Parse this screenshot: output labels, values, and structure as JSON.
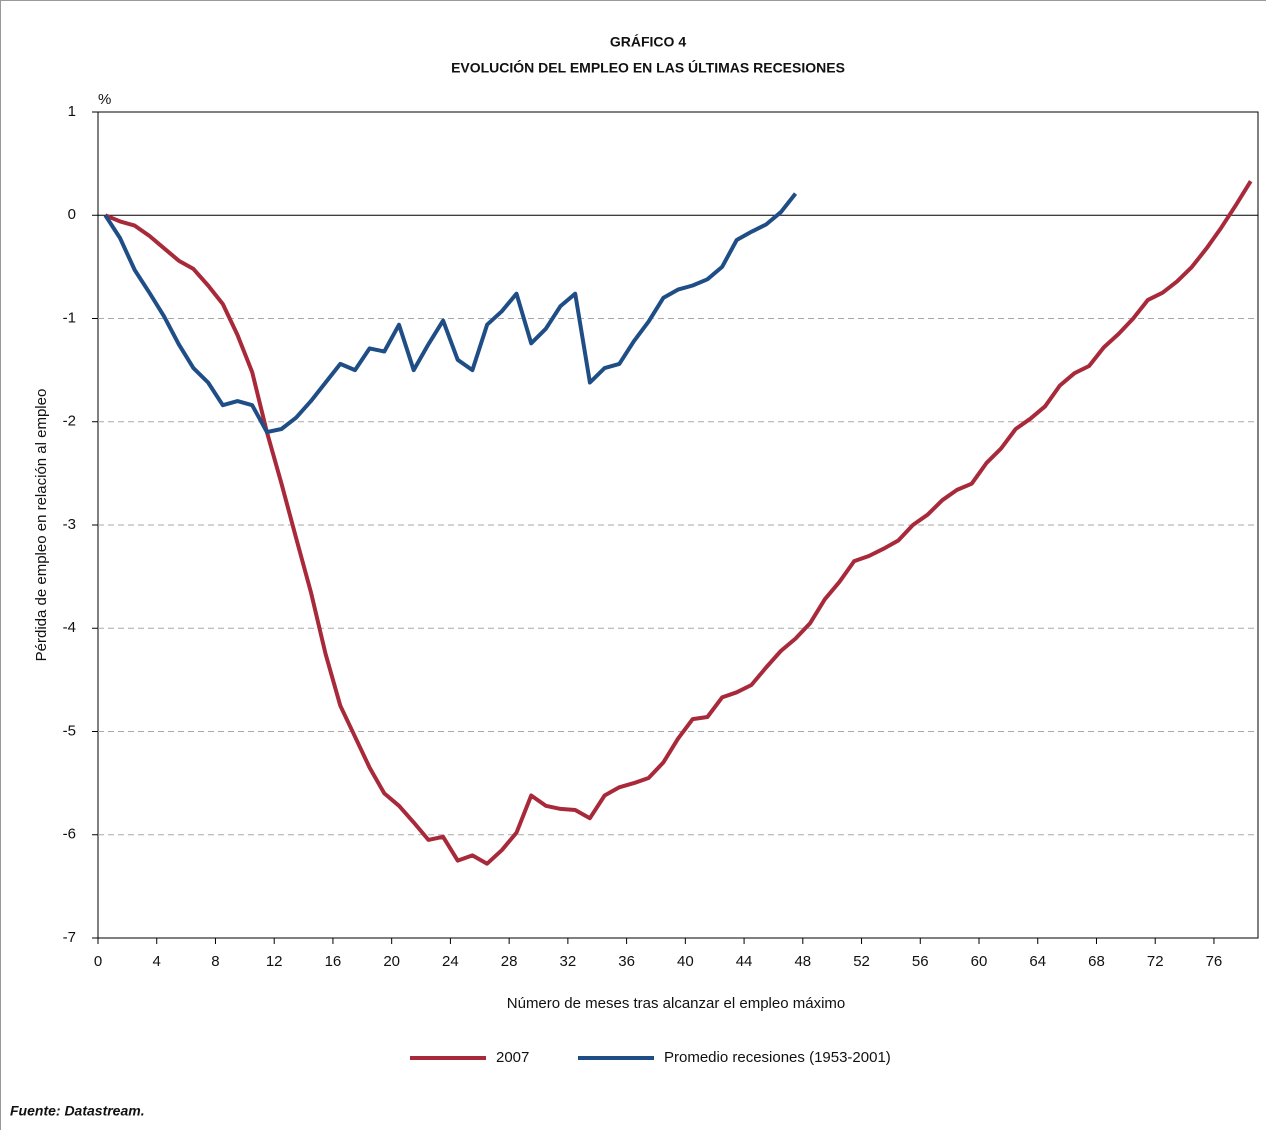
{
  "chart_data": {
    "type": "line",
    "title": "GRÁFICO 4",
    "subtitle": "EVOLUCIÓN DEL EMPLEO EN LAS ÚLTIMAS RECESIONES",
    "y_unit": "%",
    "ylabel": "Pérdida de empleo en relación al empleo",
    "xlabel": "Número de meses tras alcanzar el empleo máximo",
    "source": "Fuente: Datastream.",
    "xlim": [
      0,
      79
    ],
    "ylim": [
      -7,
      1
    ],
    "xticks": [
      0,
      4,
      8,
      12,
      16,
      20,
      24,
      28,
      32,
      36,
      40,
      44,
      48,
      52,
      56,
      60,
      64,
      68,
      72,
      76
    ],
    "yticks": [
      1,
      0,
      -1,
      -2,
      -3,
      -4,
      -5,
      -6,
      -7
    ],
    "grid": true,
    "legend": "bottom",
    "series": [
      {
        "name": "2007",
        "color": "#a82a3a",
        "x": [
          0.5,
          1.5,
          2.5,
          3.5,
          4.5,
          5.5,
          6.5,
          7.5,
          8.5,
          9.5,
          10.5,
          11.5,
          12.5,
          13.5,
          14.5,
          15.5,
          16.5,
          17.5,
          18.5,
          19.5,
          20.5,
          21.5,
          22.5,
          23.5,
          24.5,
          25.5,
          26.5,
          27.5,
          28.5,
          29.5,
          30.5,
          31.5,
          32.5,
          33.5,
          34.5,
          35.5,
          36.5,
          37.5,
          38.5,
          39.5,
          40.5,
          41.5,
          42.5,
          43.5,
          44.5,
          45.5,
          46.5,
          47.5,
          48.5,
          49.5,
          50.5,
          51.5,
          52.5,
          53.5,
          54.5,
          55.5,
          56.5,
          57.5,
          58.5,
          59.5,
          60.5,
          61.5,
          62.5,
          63.5,
          64.5,
          65.5,
          66.5,
          67.5,
          68.5,
          69.5,
          70.5,
          71.5,
          72.5,
          73.5,
          74.5,
          75.5,
          76.5,
          77.5,
          78.5
        ],
        "values": [
          0,
          -0.06,
          -0.1,
          -0.2,
          -0.32,
          -0.44,
          -0.52,
          -0.68,
          -0.86,
          -1.16,
          -1.52,
          -2.1,
          -2.6,
          -3.13,
          -3.65,
          -4.25,
          -4.75,
          -5.05,
          -5.35,
          -5.6,
          -5.72,
          -5.88,
          -6.05,
          -6.02,
          -6.25,
          -6.2,
          -6.28,
          -6.15,
          -5.98,
          -5.62,
          -5.72,
          -5.75,
          -5.76,
          -5.84,
          -5.62,
          -5.54,
          -5.5,
          -5.45,
          -5.3,
          -5.07,
          -4.88,
          -4.86,
          -4.67,
          -4.62,
          -4.55,
          -4.38,
          -4.22,
          -4.1,
          -3.95,
          -3.72,
          -3.55,
          -3.35,
          -3.3,
          -3.23,
          -3.15,
          -3.0,
          -2.9,
          -2.76,
          -2.66,
          -2.6,
          -2.4,
          -2.26,
          -2.07,
          -1.97,
          -1.85,
          -1.65,
          -1.53,
          -1.46,
          -1.28,
          -1.15,
          -1.0,
          -0.82,
          -0.75,
          -0.64,
          -0.5,
          -0.32,
          -0.12,
          0.1,
          0.33
        ]
      },
      {
        "name": "Promedio recesiones (1953-2001)",
        "color": "#1f4e87",
        "x": [
          0.5,
          1.5,
          2.5,
          3.5,
          4.5,
          5.5,
          6.5,
          7.5,
          8.5,
          9.5,
          10.5,
          11.5,
          12.5,
          13.5,
          14.5,
          15.5,
          16.5,
          17.5,
          18.5,
          19.5,
          20.5,
          21.5,
          22.5,
          23.5,
          24.5,
          25.5,
          26.5,
          27.5,
          28.5,
          29.5,
          30.5,
          31.5,
          32.5,
          33.5,
          34.5,
          35.5,
          36.5,
          37.5,
          38.5,
          39.5,
          40.5,
          41.5,
          42.5,
          43.5,
          44.5,
          45.5,
          46.5,
          47.5
        ],
        "values": [
          0,
          -0.22,
          -0.53,
          -0.75,
          -0.98,
          -1.25,
          -1.48,
          -1.62,
          -1.84,
          -1.8,
          -1.84,
          -2.1,
          -2.07,
          -1.96,
          -1.8,
          -1.62,
          -1.44,
          -1.5,
          -1.29,
          -1.32,
          -1.06,
          -1.5,
          -1.25,
          -1.02,
          -1.4,
          -1.5,
          -1.06,
          -0.93,
          -0.76,
          -1.24,
          -1.1,
          -0.88,
          -0.76,
          -1.62,
          -1.48,
          -1.44,
          -1.22,
          -1.03,
          -0.8,
          -0.72,
          -0.68,
          -0.62,
          -0.5,
          -0.24,
          -0.16,
          -0.09,
          0.03,
          0.21
        ]
      }
    ]
  }
}
